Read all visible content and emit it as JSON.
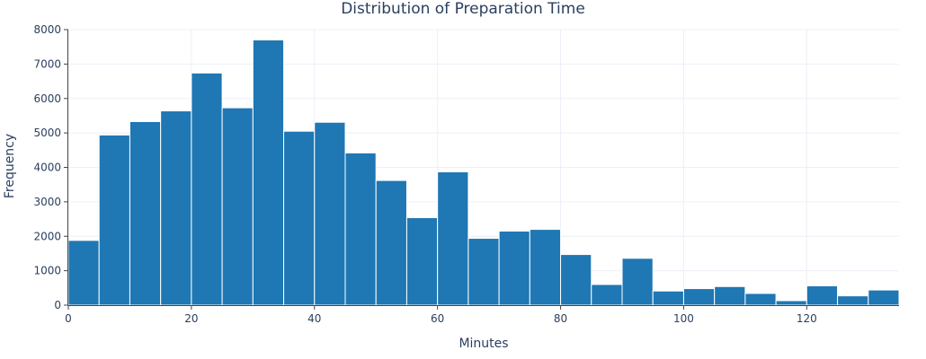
{
  "chart_data": {
    "type": "bar",
    "title": "Distribution of Preparation Time",
    "xlabel": "Minutes",
    "ylabel": "Frequency",
    "xlim": [
      0,
      135
    ],
    "ylim": [
      0,
      8000
    ],
    "x_ticks": [
      0,
      20,
      40,
      60,
      80,
      100,
      120
    ],
    "y_ticks": [
      0,
      1000,
      2000,
      3000,
      4000,
      5000,
      6000,
      7000,
      8000
    ],
    "bin_width": 5,
    "bins": [
      {
        "x0": 0,
        "x1": 5,
        "value": 1880
      },
      {
        "x0": 5,
        "x1": 10,
        "value": 4940
      },
      {
        "x0": 10,
        "x1": 15,
        "value": 5330
      },
      {
        "x0": 15,
        "x1": 20,
        "value": 5640
      },
      {
        "x0": 20,
        "x1": 25,
        "value": 6740
      },
      {
        "x0": 25,
        "x1": 30,
        "value": 5730
      },
      {
        "x0": 30,
        "x1": 35,
        "value": 7700
      },
      {
        "x0": 35,
        "x1": 40,
        "value": 5050
      },
      {
        "x0": 40,
        "x1": 45,
        "value": 5310
      },
      {
        "x0": 45,
        "x1": 50,
        "value": 4420
      },
      {
        "x0": 50,
        "x1": 55,
        "value": 3620
      },
      {
        "x0": 55,
        "x1": 60,
        "value": 2540
      },
      {
        "x0": 60,
        "x1": 65,
        "value": 3870
      },
      {
        "x0": 65,
        "x1": 70,
        "value": 1940
      },
      {
        "x0": 70,
        "x1": 75,
        "value": 2150
      },
      {
        "x0": 75,
        "x1": 80,
        "value": 2200
      },
      {
        "x0": 80,
        "x1": 85,
        "value": 1470
      },
      {
        "x0": 85,
        "x1": 90,
        "value": 600
      },
      {
        "x0": 90,
        "x1": 95,
        "value": 1360
      },
      {
        "x0": 95,
        "x1": 100,
        "value": 410
      },
      {
        "x0": 100,
        "x1": 105,
        "value": 480
      },
      {
        "x0": 105,
        "x1": 110,
        "value": 540
      },
      {
        "x0": 110,
        "x1": 115,
        "value": 340
      },
      {
        "x0": 115,
        "x1": 120,
        "value": 130
      },
      {
        "x0": 120,
        "x1": 125,
        "value": 560
      },
      {
        "x0": 125,
        "x1": 130,
        "value": 270
      },
      {
        "x0": 130,
        "x1": 135,
        "value": 440
      }
    ],
    "grid": true,
    "legend": "none",
    "colors": {
      "bar_fill": "#1f77b4",
      "bar_stroke": "#ffffff",
      "grid": "#ebf0f8",
      "text": "#2a3f5f",
      "axis": "#444444"
    }
  }
}
